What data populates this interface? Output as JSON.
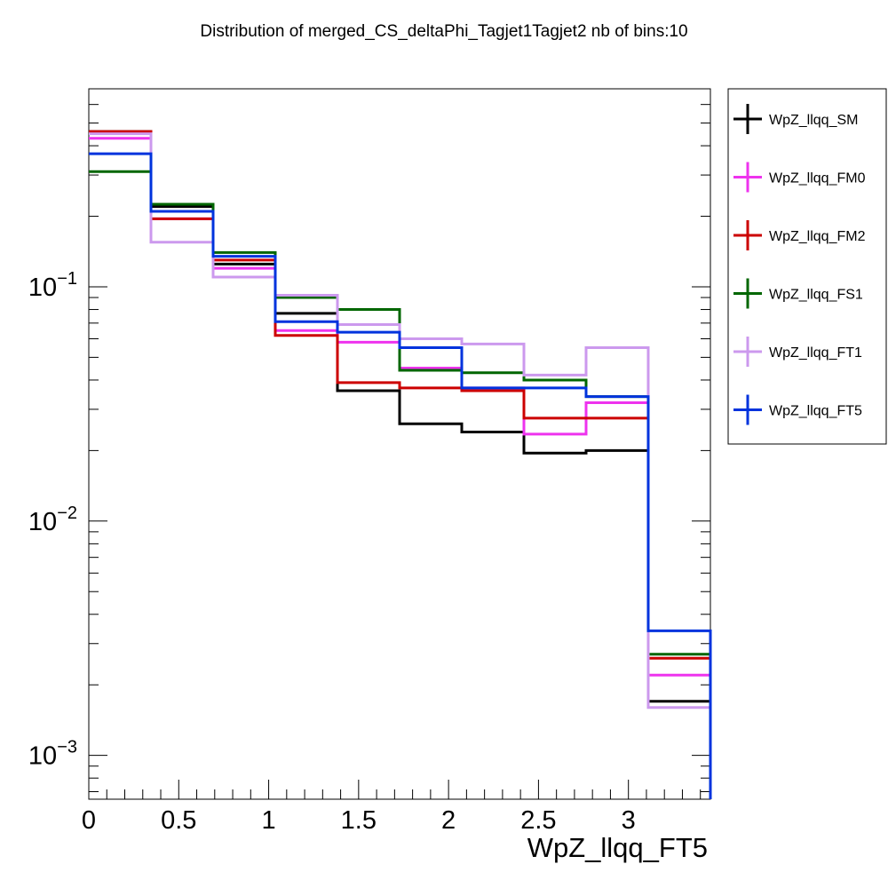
{
  "chart_data": {
    "type": "line",
    "title": "Distribution of merged_CS_deltaPhi_Tagjet1Tagjet2 nb of bins:10",
    "xlabel": "WpZ_llqq_FT5",
    "ylabel": "",
    "xlim": [
      0,
      3.4557
    ],
    "ylim": [
      0.00065,
      0.7
    ],
    "log_y": true,
    "grid": false,
    "legend_position": "outside-right-top",
    "bin_edges": [
      0,
      0.34557,
      0.69115,
      1.03672,
      1.38229,
      1.72787,
      2.07344,
      2.41901,
      2.76459,
      3.11016,
      3.45573
    ],
    "x_tick_labels": [
      "0",
      "0.5",
      "1",
      "1.5",
      "2",
      "2.5",
      "3"
    ],
    "x_tick_values": [
      0,
      0.5,
      1,
      1.5,
      2,
      2.5,
      3
    ],
    "y_tick_labels": [
      {
        "mantissa": "10",
        "exponent": "−1",
        "value": 0.1
      },
      {
        "mantissa": "10",
        "exponent": "−2",
        "value": 0.01
      },
      {
        "mantissa": "10",
        "exponent": "−3",
        "value": 0.001
      }
    ],
    "series": [
      {
        "name": "WpZ_llqq_SM",
        "color": "#000000",
        "values": [
          0.46,
          0.22,
          0.125,
          0.077,
          0.036,
          0.026,
          0.024,
          0.0195,
          0.02,
          0.0017
        ]
      },
      {
        "name": "WpZ_llqq_FM0",
        "color": "#ee33ee",
        "values": [
          0.43,
          0.195,
          0.12,
          0.065,
          0.058,
          0.045,
          0.037,
          0.0235,
          0.032,
          0.0022
        ]
      },
      {
        "name": "WpZ_llqq_FM2",
        "color": "#cc0000",
        "values": [
          0.46,
          0.195,
          0.13,
          0.062,
          0.039,
          0.037,
          0.036,
          0.0275,
          0.0275,
          0.0026
        ]
      },
      {
        "name": "WpZ_llqq_FS1",
        "color": "#006600",
        "values": [
          0.31,
          0.225,
          0.14,
          0.09,
          0.08,
          0.044,
          0.043,
          0.04,
          0.034,
          0.0027
        ]
      },
      {
        "name": "WpZ_llqq_FT1",
        "color": "#cc99ee",
        "values": [
          0.45,
          0.155,
          0.11,
          0.092,
          0.069,
          0.06,
          0.057,
          0.042,
          0.055,
          0.0016
        ]
      },
      {
        "name": "WpZ_llqq_FT5",
        "color": "#0033dd",
        "values": [
          0.37,
          0.21,
          0.135,
          0.071,
          0.064,
          0.055,
          0.037,
          0.037,
          0.034,
          0.0034
        ]
      }
    ]
  }
}
